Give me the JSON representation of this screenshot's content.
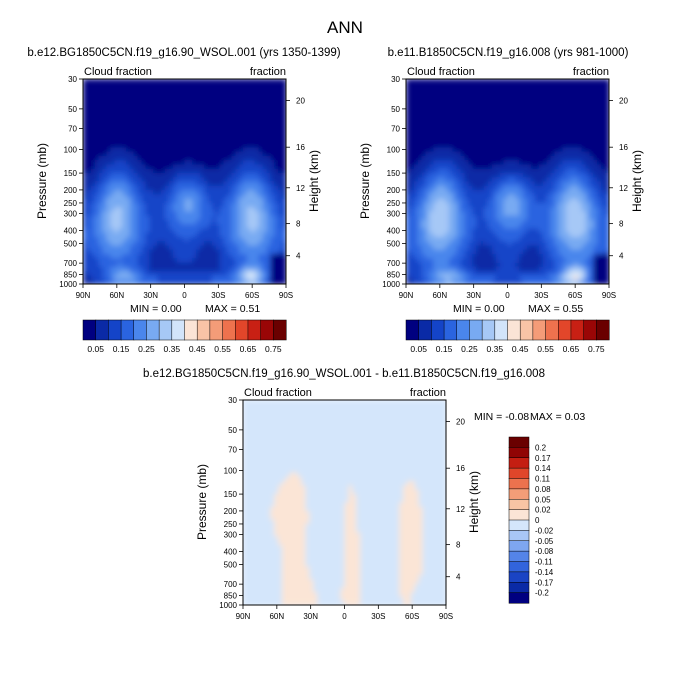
{
  "suptitle": "ANN",
  "colors": {
    "cb_main": [
      "#000080",
      "#0a2aa6",
      "#1444c8",
      "#2a64e0",
      "#4a86ec",
      "#78aaf2",
      "#a6c8f6",
      "#d2e4fa",
      "#fbe4d6",
      "#f9c4a6",
      "#f49c78",
      "#ee724e",
      "#e2462a",
      "#c82014",
      "#9a0606",
      "#6a0000"
    ],
    "cb_diff": [
      "#000080",
      "#0a2aa6",
      "#1a44c4",
      "#3264dc",
      "#5484e8",
      "#7ea6f0",
      "#a8c6f6",
      "#d4e6fb",
      "#fbe5d6",
      "#f8c4a4",
      "#f39d78",
      "#ec724e",
      "#e0462a",
      "#c41e12",
      "#900404",
      "#6a0000"
    ],
    "diff_pos": "#fbe5d6",
    "diff_neg": "#d4e6fb"
  },
  "chart_data": [
    {
      "id": "panel1",
      "type": "heatmap",
      "title": "b.e12.BG1850C5CN.f19_g16.90_WSOL.001 (yrs 1350-1399)",
      "left_label": "Cloud fraction",
      "right_label": "fraction",
      "xlabel": "",
      "ylabel": "Pressure (mb)",
      "ylabel_right": "Height (km)",
      "x_ticks": [
        "90N",
        "60N",
        "30N",
        "0",
        "30S",
        "60S",
        "90S"
      ],
      "y_ticks": [
        30,
        50,
        70,
        100,
        150,
        200,
        250,
        300,
        400,
        500,
        700,
        850,
        1000
      ],
      "height_ticks": [
        20,
        16,
        12,
        8,
        4
      ],
      "min_label": "MIN =  0.00",
      "max_label": "MAX =  0.51",
      "min": 0.0,
      "max": 0.51,
      "x_range": [
        "90N",
        "90S"
      ],
      "y_range": [
        1000,
        30
      ],
      "y_scale": "log",
      "colorbar_levels": [
        "0.05",
        "0.15",
        "0.25",
        "0.35",
        "0.45",
        "0.55",
        "0.65",
        "0.75"
      ],
      "colorbar_orientation": "horizontal",
      "peak_factor": 1.0
    },
    {
      "id": "panel2",
      "type": "heatmap",
      "title": "b.e11.B1850C5CN.f19_g16.008 (yrs 981-1000)",
      "left_label": "Cloud fraction",
      "right_label": "fraction",
      "xlabel": "",
      "ylabel": "Pressure (mb)",
      "ylabel_right": "Height (km)",
      "x_ticks": [
        "90N",
        "60N",
        "30N",
        "0",
        "30S",
        "60S",
        "90S"
      ],
      "y_ticks": [
        30,
        50,
        70,
        100,
        150,
        200,
        250,
        300,
        400,
        500,
        700,
        850,
        1000
      ],
      "height_ticks": [
        20,
        16,
        12,
        8,
        4
      ],
      "min_label": "MIN =  0.00",
      "max_label": "MAX =  0.55",
      "min": 0.0,
      "max": 0.55,
      "x_range": [
        "90N",
        "90S"
      ],
      "y_range": [
        1000,
        30
      ],
      "y_scale": "log",
      "colorbar_levels": [
        "0.05",
        "0.15",
        "0.25",
        "0.35",
        "0.45",
        "0.55",
        "0.65",
        "0.75"
      ],
      "colorbar_orientation": "horizontal",
      "peak_factor": 1.08
    },
    {
      "id": "panel3",
      "type": "heatmap",
      "title": "b.e12.BG1850C5CN.f19_g16.90_WSOL.001 - b.e11.B1850C5CN.f19_g16.008",
      "left_label": "Cloud fraction",
      "right_label": "fraction",
      "xlabel": "",
      "ylabel": "Pressure (mb)",
      "ylabel_right": "Height (km)",
      "x_ticks": [
        "90N",
        "60N",
        "30N",
        "0",
        "30S",
        "60S",
        "90S"
      ],
      "y_ticks": [
        30,
        50,
        70,
        100,
        150,
        200,
        250,
        300,
        400,
        500,
        700,
        850,
        1000
      ],
      "height_ticks": [
        20,
        16,
        12,
        8,
        4
      ],
      "min_label": "MIN = -0.08",
      "max_label": "MAX =  0.03",
      "min": -0.08,
      "max": 0.03,
      "x_range": [
        "90N",
        "90S"
      ],
      "y_range": [
        1000,
        30
      ],
      "y_scale": "log",
      "colorbar_levels": [
        "0.2",
        "0.17",
        "0.14",
        "0.11",
        "0.08",
        "0.05",
        "0.02",
        "0",
        "-0.02",
        "-0.05",
        "-0.08",
        "-0.11",
        "-0.14",
        "-0.17",
        "-0.2"
      ],
      "colorbar_orientation": "vertical"
    }
  ]
}
